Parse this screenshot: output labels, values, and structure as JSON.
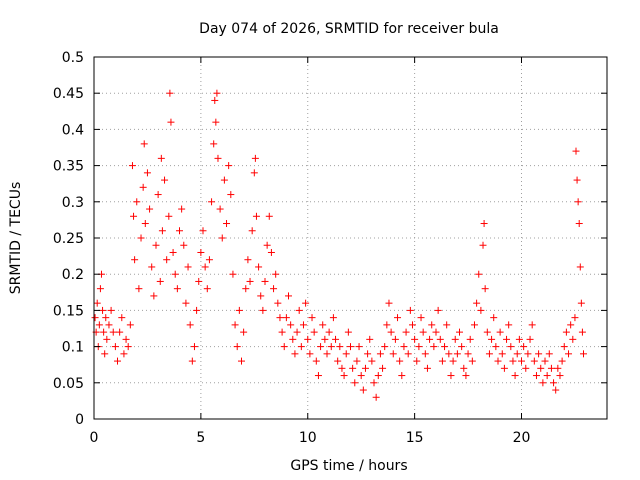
{
  "chart_data": {
    "type": "scatter",
    "title": "Day 074 of 2026, SRMTID for receiver bula",
    "xlabel": "GPS time / hours",
    "ylabel": "SRMTID / TECUs",
    "xlim": [
      0,
      24
    ],
    "ylim": [
      0,
      0.5
    ],
    "xticks": [
      0,
      5,
      10,
      15,
      20
    ],
    "xtick_labels": [
      "0",
      "5",
      "10",
      "15",
      "20"
    ],
    "yticks": [
      0,
      0.05,
      0.1,
      0.15,
      0.2,
      0.25,
      0.3,
      0.35,
      0.4,
      0.45,
      0.5
    ],
    "ytick_labels": [
      "0",
      "0.05",
      "0.1",
      "0.15",
      "0.2",
      "0.25",
      "0.3",
      "0.35",
      "0.4",
      "0.45",
      "0.5"
    ],
    "grid": true,
    "marker": "+",
    "color": "#ff0000",
    "series": [
      {
        "name": "SRMTID",
        "points": [
          [
            0.05,
            0.14
          ],
          [
            0.1,
            0.12
          ],
          [
            0.15,
            0.16
          ],
          [
            0.2,
            0.1
          ],
          [
            0.25,
            0.13
          ],
          [
            0.3,
            0.18
          ],
          [
            0.35,
            0.2
          ],
          [
            0.4,
            0.15
          ],
          [
            0.45,
            0.12
          ],
          [
            0.5,
            0.09
          ],
          [
            0.55,
            0.14
          ],
          [
            0.6,
            0.11
          ],
          [
            0.7,
            0.13
          ],
          [
            0.8,
            0.15
          ],
          [
            0.9,
            0.12
          ],
          [
            1.0,
            0.1
          ],
          [
            1.1,
            0.08
          ],
          [
            1.2,
            0.12
          ],
          [
            1.3,
            0.14
          ],
          [
            1.4,
            0.09
          ],
          [
            1.5,
            0.11
          ],
          [
            1.6,
            0.1
          ],
          [
            1.7,
            0.13
          ],
          [
            1.8,
            0.35
          ],
          [
            1.85,
            0.28
          ],
          [
            1.9,
            0.22
          ],
          [
            2.0,
            0.3
          ],
          [
            2.1,
            0.18
          ],
          [
            2.2,
            0.25
          ],
          [
            2.3,
            0.32
          ],
          [
            2.35,
            0.38
          ],
          [
            2.4,
            0.27
          ],
          [
            2.5,
            0.34
          ],
          [
            2.6,
            0.29
          ],
          [
            2.7,
            0.21
          ],
          [
            2.8,
            0.17
          ],
          [
            2.9,
            0.24
          ],
          [
            3.0,
            0.31
          ],
          [
            3.1,
            0.19
          ],
          [
            3.15,
            0.36
          ],
          [
            3.2,
            0.26
          ],
          [
            3.3,
            0.33
          ],
          [
            3.4,
            0.22
          ],
          [
            3.5,
            0.28
          ],
          [
            3.55,
            0.45
          ],
          [
            3.6,
            0.41
          ],
          [
            3.7,
            0.23
          ],
          [
            3.8,
            0.2
          ],
          [
            3.9,
            0.18
          ],
          [
            4.0,
            0.26
          ],
          [
            4.1,
            0.29
          ],
          [
            4.2,
            0.24
          ],
          [
            4.3,
            0.16
          ],
          [
            4.4,
            0.21
          ],
          [
            4.5,
            0.13
          ],
          [
            4.6,
            0.08
          ],
          [
            4.7,
            0.1
          ],
          [
            4.8,
            0.15
          ],
          [
            4.9,
            0.19
          ],
          [
            5.0,
            0.23
          ],
          [
            5.1,
            0.26
          ],
          [
            5.2,
            0.21
          ],
          [
            5.3,
            0.18
          ],
          [
            5.4,
            0.22
          ],
          [
            5.5,
            0.3
          ],
          [
            5.6,
            0.38
          ],
          [
            5.65,
            0.44
          ],
          [
            5.7,
            0.41
          ],
          [
            5.75,
            0.45
          ],
          [
            5.8,
            0.36
          ],
          [
            5.9,
            0.29
          ],
          [
            6.0,
            0.25
          ],
          [
            6.1,
            0.33
          ],
          [
            6.2,
            0.27
          ],
          [
            6.3,
            0.35
          ],
          [
            6.4,
            0.31
          ],
          [
            6.5,
            0.2
          ],
          [
            6.6,
            0.13
          ],
          [
            6.7,
            0.1
          ],
          [
            6.8,
            0.15
          ],
          [
            6.9,
            0.08
          ],
          [
            7.0,
            0.12
          ],
          [
            7.1,
            0.18
          ],
          [
            7.2,
            0.22
          ],
          [
            7.3,
            0.19
          ],
          [
            7.4,
            0.26
          ],
          [
            7.5,
            0.34
          ],
          [
            7.55,
            0.36
          ],
          [
            7.6,
            0.28
          ],
          [
            7.7,
            0.21
          ],
          [
            7.8,
            0.17
          ],
          [
            7.9,
            0.15
          ],
          [
            8.0,
            0.19
          ],
          [
            8.1,
            0.24
          ],
          [
            8.2,
            0.28
          ],
          [
            8.3,
            0.23
          ],
          [
            8.4,
            0.18
          ],
          [
            8.5,
            0.2
          ],
          [
            8.6,
            0.16
          ],
          [
            8.7,
            0.14
          ],
          [
            8.8,
            0.12
          ],
          [
            8.9,
            0.1
          ],
          [
            9.0,
            0.14
          ],
          [
            9.1,
            0.17
          ],
          [
            9.2,
            0.13
          ],
          [
            9.3,
            0.11
          ],
          [
            9.4,
            0.09
          ],
          [
            9.5,
            0.12
          ],
          [
            9.6,
            0.15
          ],
          [
            9.7,
            0.1
          ],
          [
            9.8,
            0.13
          ],
          [
            9.9,
            0.16
          ],
          [
            10.0,
            0.11
          ],
          [
            10.1,
            0.09
          ],
          [
            10.2,
            0.14
          ],
          [
            10.3,
            0.12
          ],
          [
            10.4,
            0.08
          ],
          [
            10.5,
            0.06
          ],
          [
            10.6,
            0.1
          ],
          [
            10.7,
            0.13
          ],
          [
            10.8,
            0.11
          ],
          [
            10.9,
            0.09
          ],
          [
            11.0,
            0.12
          ],
          [
            11.1,
            0.1
          ],
          [
            11.2,
            0.14
          ],
          [
            11.3,
            0.11
          ],
          [
            11.4,
            0.08
          ],
          [
            11.5,
            0.1
          ],
          [
            11.6,
            0.07
          ],
          [
            11.7,
            0.06
          ],
          [
            11.8,
            0.09
          ],
          [
            11.9,
            0.12
          ],
          [
            12.0,
            0.1
          ],
          [
            12.1,
            0.07
          ],
          [
            12.2,
            0.05
          ],
          [
            12.3,
            0.08
          ],
          [
            12.4,
            0.1
          ],
          [
            12.5,
            0.06
          ],
          [
            12.6,
            0.04
          ],
          [
            12.7,
            0.07
          ],
          [
            12.8,
            0.09
          ],
          [
            12.9,
            0.11
          ],
          [
            13.0,
            0.08
          ],
          [
            13.1,
            0.05
          ],
          [
            13.2,
            0.03
          ],
          [
            13.3,
            0.06
          ],
          [
            13.4,
            0.09
          ],
          [
            13.5,
            0.07
          ],
          [
            13.6,
            0.1
          ],
          [
            13.7,
            0.13
          ],
          [
            13.8,
            0.16
          ],
          [
            13.9,
            0.12
          ],
          [
            14.0,
            0.09
          ],
          [
            14.1,
            0.11
          ],
          [
            14.2,
            0.14
          ],
          [
            14.3,
            0.08
          ],
          [
            14.4,
            0.06
          ],
          [
            14.5,
            0.1
          ],
          [
            14.6,
            0.12
          ],
          [
            14.7,
            0.09
          ],
          [
            14.8,
            0.15
          ],
          [
            14.9,
            0.13
          ],
          [
            15.0,
            0.11
          ],
          [
            15.1,
            0.08
          ],
          [
            15.2,
            0.1
          ],
          [
            15.3,
            0.14
          ],
          [
            15.4,
            0.12
          ],
          [
            15.5,
            0.09
          ],
          [
            15.6,
            0.07
          ],
          [
            15.7,
            0.11
          ],
          [
            15.8,
            0.13
          ],
          [
            15.9,
            0.1
          ],
          [
            16.0,
            0.12
          ],
          [
            16.1,
            0.15
          ],
          [
            16.2,
            0.11
          ],
          [
            16.3,
            0.08
          ],
          [
            16.4,
            0.1
          ],
          [
            16.5,
            0.13
          ],
          [
            16.6,
            0.09
          ],
          [
            16.7,
            0.06
          ],
          [
            16.8,
            0.08
          ],
          [
            16.9,
            0.11
          ],
          [
            17.0,
            0.09
          ],
          [
            17.1,
            0.12
          ],
          [
            17.2,
            0.1
          ],
          [
            17.3,
            0.07
          ],
          [
            17.4,
            0.06
          ],
          [
            17.5,
            0.09
          ],
          [
            17.6,
            0.11
          ],
          [
            17.7,
            0.08
          ],
          [
            17.8,
            0.13
          ],
          [
            17.9,
            0.16
          ],
          [
            18.0,
            0.2
          ],
          [
            18.1,
            0.15
          ],
          [
            18.2,
            0.24
          ],
          [
            18.25,
            0.27
          ],
          [
            18.3,
            0.18
          ],
          [
            18.4,
            0.12
          ],
          [
            18.5,
            0.09
          ],
          [
            18.6,
            0.11
          ],
          [
            18.7,
            0.14
          ],
          [
            18.8,
            0.1
          ],
          [
            18.9,
            0.08
          ],
          [
            19.0,
            0.12
          ],
          [
            19.1,
            0.09
          ],
          [
            19.2,
            0.07
          ],
          [
            19.3,
            0.11
          ],
          [
            19.4,
            0.13
          ],
          [
            19.5,
            0.1
          ],
          [
            19.6,
            0.08
          ],
          [
            19.7,
            0.06
          ],
          [
            19.8,
            0.09
          ],
          [
            19.9,
            0.11
          ],
          [
            20.0,
            0.08
          ],
          [
            20.1,
            0.1
          ],
          [
            20.2,
            0.07
          ],
          [
            20.3,
            0.09
          ],
          [
            20.4,
            0.11
          ],
          [
            20.5,
            0.13
          ],
          [
            20.6,
            0.08
          ],
          [
            20.7,
            0.06
          ],
          [
            20.8,
            0.09
          ],
          [
            20.9,
            0.07
          ],
          [
            21.0,
            0.05
          ],
          [
            21.1,
            0.08
          ],
          [
            21.2,
            0.06
          ],
          [
            21.3,
            0.09
          ],
          [
            21.4,
            0.07
          ],
          [
            21.5,
            0.05
          ],
          [
            21.6,
            0.04
          ],
          [
            21.7,
            0.07
          ],
          [
            21.8,
            0.06
          ],
          [
            21.9,
            0.08
          ],
          [
            22.0,
            0.1
          ],
          [
            22.1,
            0.12
          ],
          [
            22.2,
            0.09
          ],
          [
            22.3,
            0.13
          ],
          [
            22.4,
            0.11
          ],
          [
            22.5,
            0.14
          ],
          [
            22.55,
            0.37
          ],
          [
            22.6,
            0.33
          ],
          [
            22.65,
            0.3
          ],
          [
            22.7,
            0.27
          ],
          [
            22.75,
            0.21
          ],
          [
            22.8,
            0.16
          ],
          [
            22.85,
            0.12
          ],
          [
            22.9,
            0.09
          ]
        ]
      }
    ]
  }
}
